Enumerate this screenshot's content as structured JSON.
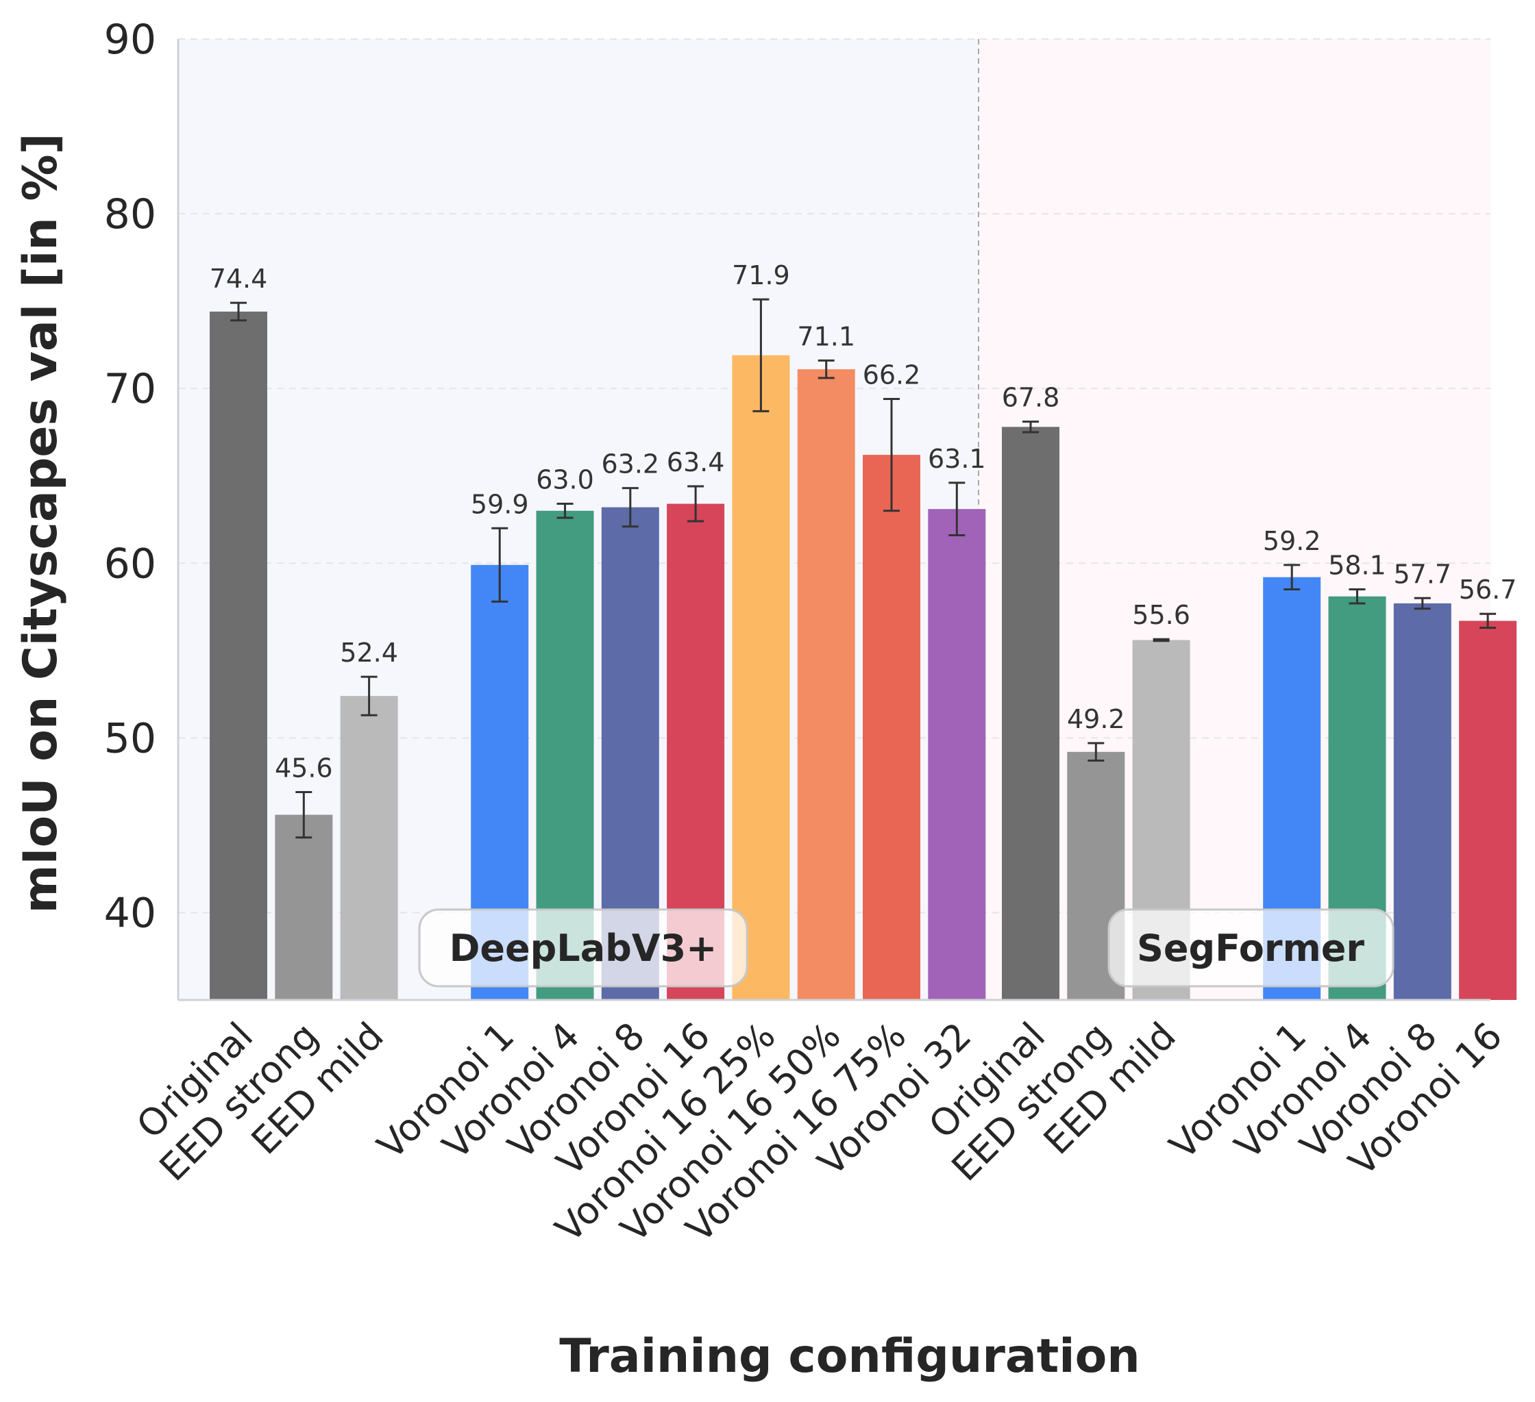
{
  "chart_data": {
    "type": "bar",
    "xlabel": "Training configuration",
    "ylabel": "mIoU on Cityscapes val [in %]",
    "ylim": [
      35,
      90
    ],
    "yticks": [
      40,
      50,
      60,
      70,
      80,
      90
    ],
    "grid": true,
    "groups": [
      {
        "name": "DeepLabV3+",
        "background": "#f6f7fc",
        "bars": [
          {
            "label": "Original",
            "value": 74.4,
            "error": 0.5,
            "value_label": "74.4",
            "color": "#6e6e6e"
          },
          {
            "label": "EED strong",
            "value": 45.6,
            "error": 1.3,
            "value_label": "45.6",
            "color": "#959595"
          },
          {
            "label": "EED mild",
            "value": 52.4,
            "error": 1.1,
            "value_label": "52.4",
            "color": "#bababa"
          },
          {
            "label": "Voronoi 1",
            "value": 59.9,
            "error": 2.1,
            "value_label": "59.9",
            "color": "#4287f5"
          },
          {
            "label": "Voronoi 4",
            "value": 63.0,
            "error": 0.4,
            "value_label": "63.0",
            "color": "#439b80"
          },
          {
            "label": "Voronoi 8",
            "value": 63.2,
            "error": 1.1,
            "value_label": "63.2",
            "color": "#5d6ba8"
          },
          {
            "label": "Voronoi 16",
            "value": 63.4,
            "error": 1.0,
            "value_label": "63.4",
            "color": "#d64559"
          },
          {
            "label": "Voronoi 16 25%",
            "value": 71.9,
            "error": 3.2,
            "value_label": "71.9",
            "color": "#fdb863"
          },
          {
            "label": "Voronoi 16 50%",
            "value": 71.1,
            "error": 0.5,
            "value_label": "71.1",
            "color": "#f48c63"
          },
          {
            "label": "Voronoi 16 75%",
            "value": 66.2,
            "error": 3.2,
            "value_label": "66.2",
            "color": "#e96655"
          },
          {
            "label": "Voronoi 32",
            "value": 63.1,
            "error": 1.5,
            "value_label": "63.1",
            "color": "#a063b8"
          }
        ]
      },
      {
        "name": "SegFormer",
        "background": "#fff7f9",
        "bars": [
          {
            "label": "Original",
            "value": 67.8,
            "error": 0.3,
            "value_label": "67.8",
            "color": "#6e6e6e"
          },
          {
            "label": "EED strong",
            "value": 49.2,
            "error": 0.5,
            "value_label": "49.2",
            "color": "#959595"
          },
          {
            "label": "EED mild",
            "value": 55.6,
            "error": 0.05,
            "value_label": "55.6",
            "color": "#bababa"
          },
          {
            "label": "Voronoi 1",
            "value": 59.2,
            "error": 0.7,
            "value_label": "59.2",
            "color": "#4287f5"
          },
          {
            "label": "Voronoi 4",
            "value": 58.1,
            "error": 0.4,
            "value_label": "58.1",
            "color": "#439b80"
          },
          {
            "label": "Voronoi 8",
            "value": 57.7,
            "error": 0.3,
            "value_label": "57.7",
            "color": "#5d6ba8"
          },
          {
            "label": "Voronoi 16",
            "value": 56.7,
            "error": 0.4,
            "value_label": "56.7",
            "color": "#d64559"
          }
        ]
      }
    ]
  }
}
